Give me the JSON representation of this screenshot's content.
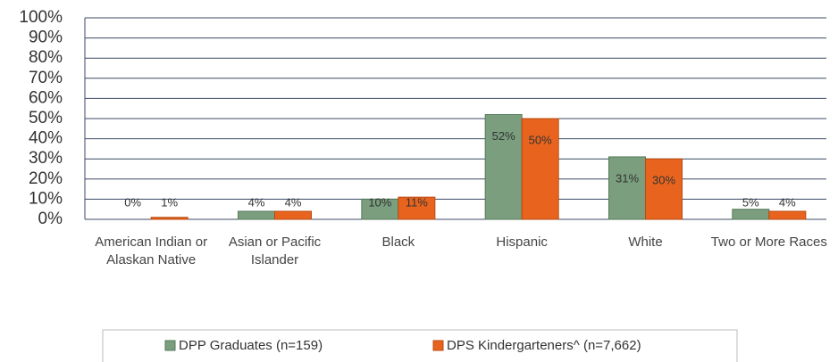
{
  "chart_data": {
    "type": "bar",
    "categories": [
      "American Indian or Alaskan Native",
      "Asian or Pacific Islander",
      "Black",
      "Hispanic",
      "White",
      "Two or More Races"
    ],
    "series": [
      {
        "name": "DPP Graduates (n=159)",
        "color": "#7a9e7e",
        "values": [
          0,
          4,
          10,
          52,
          31,
          5
        ],
        "value_labels": [
          "0%",
          "4%",
          "10%",
          "52%",
          "31%",
          "5%"
        ]
      },
      {
        "name": "DPS Kindergarteners^ (n=7,662)",
        "color": "#e8641e",
        "values": [
          1,
          4,
          11,
          50,
          30,
          4
        ],
        "value_labels": [
          "1%",
          "4%",
          "11%",
          "50%",
          "30%",
          "4%"
        ]
      }
    ],
    "ylim": [
      0,
      100
    ],
    "yticks": [
      {
        "value": 0,
        "label": "0%"
      },
      {
        "value": 10,
        "label": "10%"
      },
      {
        "value": 20,
        "label": "20%"
      },
      {
        "value": 30,
        "label": "30%"
      },
      {
        "value": 40,
        "label": "40%"
      },
      {
        "value": 50,
        "label": "50%"
      },
      {
        "value": 60,
        "label": "60%"
      },
      {
        "value": 70,
        "label": "70%"
      },
      {
        "value": 80,
        "label": "80%"
      },
      {
        "value": 90,
        "label": "90%"
      },
      {
        "value": 100,
        "label": "100%"
      }
    ],
    "grid": true,
    "legend": "bottom"
  }
}
